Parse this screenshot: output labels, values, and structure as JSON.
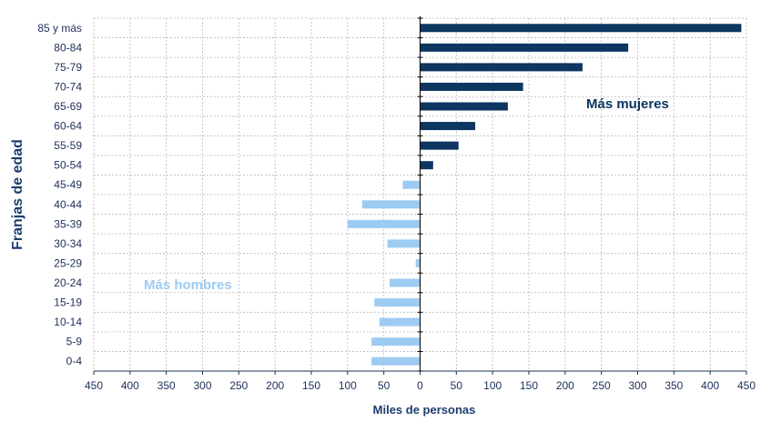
{
  "chart_data": {
    "type": "bar",
    "orientation": "horizontal",
    "ylabel": "Franjas de edad",
    "xlabel": "Miles de personas",
    "xlim": [
      -450,
      450
    ],
    "xticks": [
      -450,
      -400,
      -350,
      -300,
      -250,
      -200,
      -150,
      -100,
      -50,
      0,
      50,
      100,
      150,
      200,
      250,
      300,
      350,
      400,
      450
    ],
    "xtick_labels": [
      "450",
      "400",
      "350",
      "300",
      "250",
      "200",
      "150",
      "100",
      "50",
      "0",
      "50",
      "100",
      "150",
      "200",
      "250",
      "300",
      "350",
      "400",
      "450"
    ],
    "grid": true,
    "categories": [
      "85 y más",
      "80-84",
      "75-79",
      "70-74",
      "65-69",
      "60-64",
      "55-59",
      "50-54",
      "45-49",
      "40-44",
      "35-39",
      "30-34",
      "25-29",
      "20-24",
      "15-19",
      "10-14",
      "5-9",
      "0-4"
    ],
    "values": [
      443,
      287,
      224,
      142,
      121,
      76,
      53,
      18,
      -24,
      -80,
      -100,
      -45,
      -6,
      -42,
      -63,
      -56,
      -67,
      -67
    ],
    "colors": {
      "positive": "#0d3660",
      "negative": "#9dcbf2"
    },
    "annotations": [
      {
        "text": "Más mujeres",
        "color": "#0d3660"
      },
      {
        "text": "Más hombres",
        "color": "#9dcbf2"
      }
    ]
  }
}
